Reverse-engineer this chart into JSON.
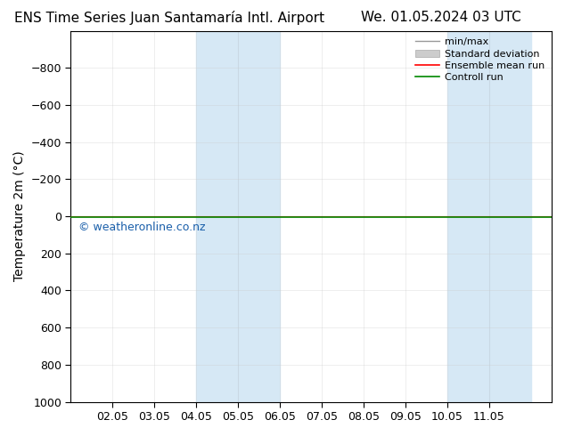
{
  "title_left": "ENS Time Series Juan Santamaría Intl. Airport",
  "title_right": "We. 01.05.2024 03 UTC",
  "ylabel": "Temperature 2m (°C)",
  "watermark": "© weatheronline.co.nz",
  "ylim_top": -1000,
  "ylim_bottom": 1000,
  "yticks": [
    -800,
    -600,
    -400,
    -200,
    0,
    200,
    400,
    600,
    800,
    1000
  ],
  "xtick_labels": [
    "02.05",
    "03.05",
    "04.05",
    "05.05",
    "06.05",
    "07.05",
    "08.05",
    "09.05",
    "10.05",
    "11.05"
  ],
  "xtick_positions": [
    1,
    2,
    3,
    4,
    5,
    6,
    7,
    8,
    9,
    10
  ],
  "shaded_regions": [
    {
      "xstart": 3.0,
      "xend": 4.0
    },
    {
      "xstart": 4.0,
      "xend": 5.0
    },
    {
      "xstart": 9.0,
      "xend": 10.0
    },
    {
      "xstart": 10.0,
      "xend": 11.0
    }
  ],
  "shaded_color": "#d6e8f5",
  "x_min": 0.0,
  "x_max": 11.5,
  "ensemble_mean_y": 0,
  "control_run_y": 0,
  "ensemble_mean_color": "#ff0000",
  "control_run_color": "#008800",
  "minmax_color": "#999999",
  "std_dev_color": "#cccccc",
  "background_color": "#ffffff",
  "legend_labels": [
    "min/max",
    "Standard deviation",
    "Ensemble mean run",
    "Controll run"
  ],
  "spine_color": "#000000",
  "title_fontsize": 11,
  "tick_fontsize": 9,
  "ylabel_fontsize": 10,
  "watermark_color": "#1a5faa",
  "watermark_fontsize": 9
}
